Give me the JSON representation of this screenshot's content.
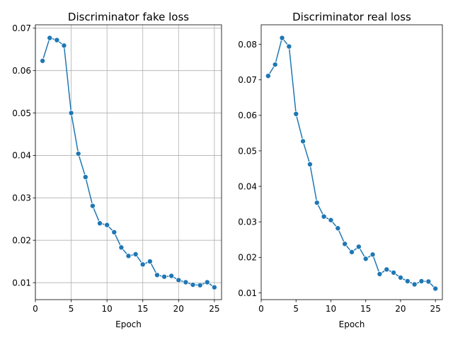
{
  "chart_data": [
    {
      "type": "line",
      "title": "Discriminator fake loss",
      "xlabel": "Epoch",
      "ylabel": "",
      "xlim": [
        0,
        26
      ],
      "ylim": [
        0.006,
        0.0708
      ],
      "xticks": [
        0,
        5,
        10,
        15,
        20,
        25
      ],
      "xtick_labels": [
        "0",
        "5",
        "10",
        "15",
        "20",
        "25"
      ],
      "yticks": [
        0.01,
        0.02,
        0.03,
        0.04,
        0.05,
        0.06,
        0.07
      ],
      "ytick_labels": [
        "0.01",
        "0.02",
        "0.03",
        "0.04",
        "0.05",
        "0.06",
        "0.07"
      ],
      "grid": true,
      "marker": "circle",
      "color": "#1f77b4",
      "x": [
        1,
        2,
        3,
        4,
        5,
        6,
        7,
        8,
        9,
        10,
        11,
        12,
        13,
        14,
        15,
        16,
        17,
        18,
        19,
        20,
        21,
        22,
        23,
        24,
        25
      ],
      "y": [
        0.0623,
        0.0677,
        0.0672,
        0.0659,
        0.05,
        0.0404,
        0.0349,
        0.0281,
        0.024,
        0.0236,
        0.0219,
        0.0183,
        0.0163,
        0.0167,
        0.0143,
        0.015,
        0.0118,
        0.0114,
        0.0116,
        0.0106,
        0.0101,
        0.0095,
        0.0094,
        0.0101,
        0.0089
      ]
    },
    {
      "type": "line",
      "title": "Discriminator real loss",
      "xlabel": "Epoch",
      "ylabel": "",
      "xlim": [
        0,
        26
      ],
      "ylim": [
        0.0081,
        0.0855
      ],
      "xticks": [
        0,
        5,
        10,
        15,
        20,
        25
      ],
      "xtick_labels": [
        "0",
        "5",
        "10",
        "15",
        "20",
        "25"
      ],
      "yticks": [
        0.01,
        0.02,
        0.03,
        0.04,
        0.05,
        0.06,
        0.07,
        0.08
      ],
      "ytick_labels": [
        "0.01",
        "0.02",
        "0.03",
        "0.04",
        "0.05",
        "0.06",
        "0.07",
        "0.08"
      ],
      "grid": false,
      "marker": "circle",
      "color": "#1f77b4",
      "x": [
        1,
        2,
        3,
        4,
        5,
        6,
        7,
        8,
        9,
        10,
        11,
        12,
        13,
        14,
        15,
        16,
        17,
        18,
        19,
        20,
        21,
        22,
        23,
        24,
        25
      ],
      "y": [
        0.0711,
        0.0743,
        0.0818,
        0.0794,
        0.0604,
        0.0527,
        0.0462,
        0.0354,
        0.0315,
        0.0305,
        0.0282,
        0.0238,
        0.0215,
        0.023,
        0.0196,
        0.0208,
        0.0153,
        0.0166,
        0.0157,
        0.0143,
        0.0133,
        0.0124,
        0.0133,
        0.0132,
        0.0112
      ]
    }
  ]
}
